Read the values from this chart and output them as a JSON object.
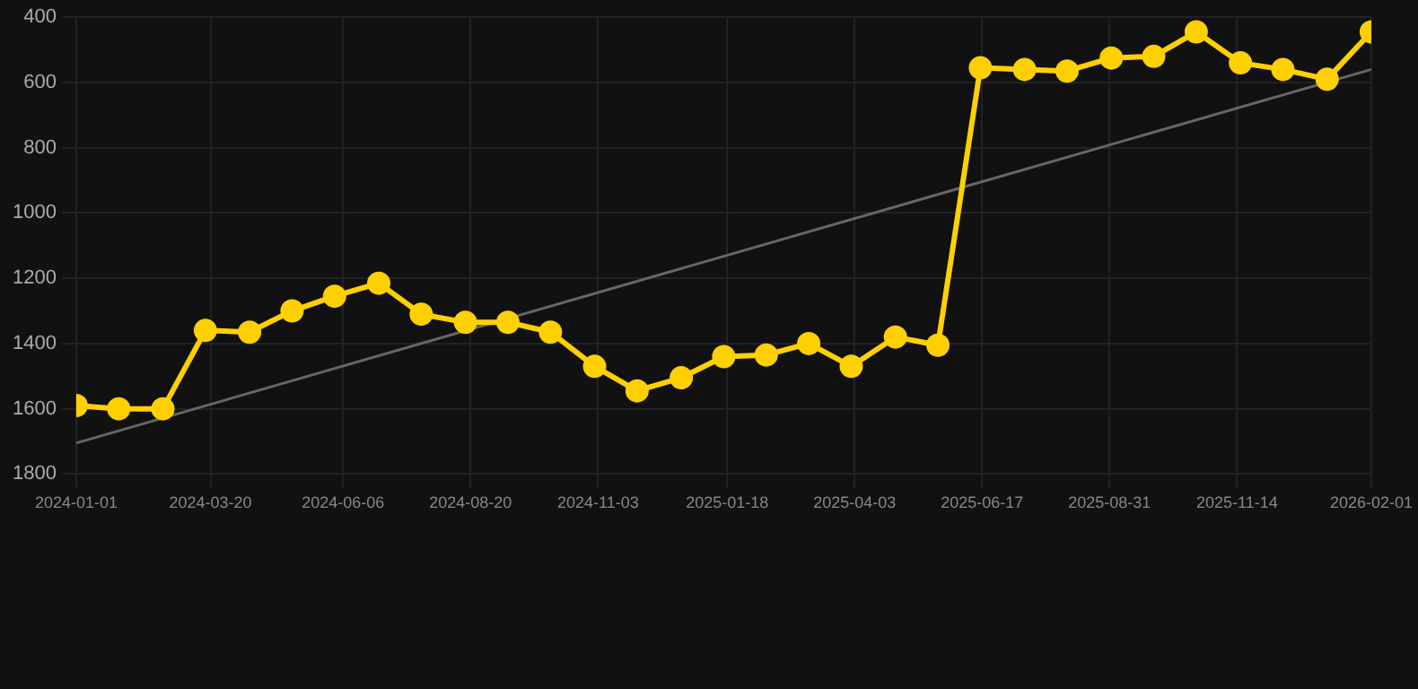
{
  "chart_data": {
    "type": "line",
    "series": [
      {
        "color": "#ffd000",
        "marker": "circle",
        "x": [
          "2024-01-01",
          "2024-01-26",
          "2024-02-21",
          "2024-03-17",
          "2024-04-12",
          "2024-05-07",
          "2024-06-01",
          "2024-06-27",
          "2024-07-22",
          "2024-08-17",
          "2024-09-11",
          "2024-10-06",
          "2024-11-01",
          "2024-11-26",
          "2024-12-22",
          "2025-01-16",
          "2025-02-10",
          "2025-03-07",
          "2025-04-01",
          "2025-04-27",
          "2025-05-22",
          "2025-06-16",
          "2025-07-12",
          "2025-08-06",
          "2025-09-01",
          "2025-09-26",
          "2025-10-21",
          "2025-11-16",
          "2025-12-11",
          "2026-01-06",
          "2026-02-01"
        ],
        "values": [
          1590,
          1600,
          1600,
          1360,
          1365,
          1300,
          1255,
          1215,
          1310,
          1335,
          1335,
          1365,
          1470,
          1545,
          1505,
          1440,
          1435,
          1400,
          1470,
          1380,
          1405,
          555,
          560,
          565,
          525,
          520,
          445,
          540,
          560,
          590,
          445
        ]
      },
      {
        "type": "line",
        "color": "#666666",
        "marker": "none",
        "x": [
          "2024-01-01",
          "2026-02-01"
        ],
        "values": [
          1705,
          560
        ]
      }
    ],
    "ylim": [
      1800,
      400
    ],
    "yticks": [
      400,
      600,
      800,
      1000,
      1200,
      1400,
      1600,
      1800
    ],
    "xlim": [
      "2024-01-01",
      "2026-02-01"
    ],
    "xticks": [
      "2024-01-01",
      "2024-03-20",
      "2024-06-06",
      "2024-08-20",
      "2024-11-03",
      "2025-01-18",
      "2025-04-03",
      "2025-06-17",
      "2025-08-31",
      "2025-11-14",
      "2026-02-01"
    ],
    "grid": true,
    "legend": false
  }
}
